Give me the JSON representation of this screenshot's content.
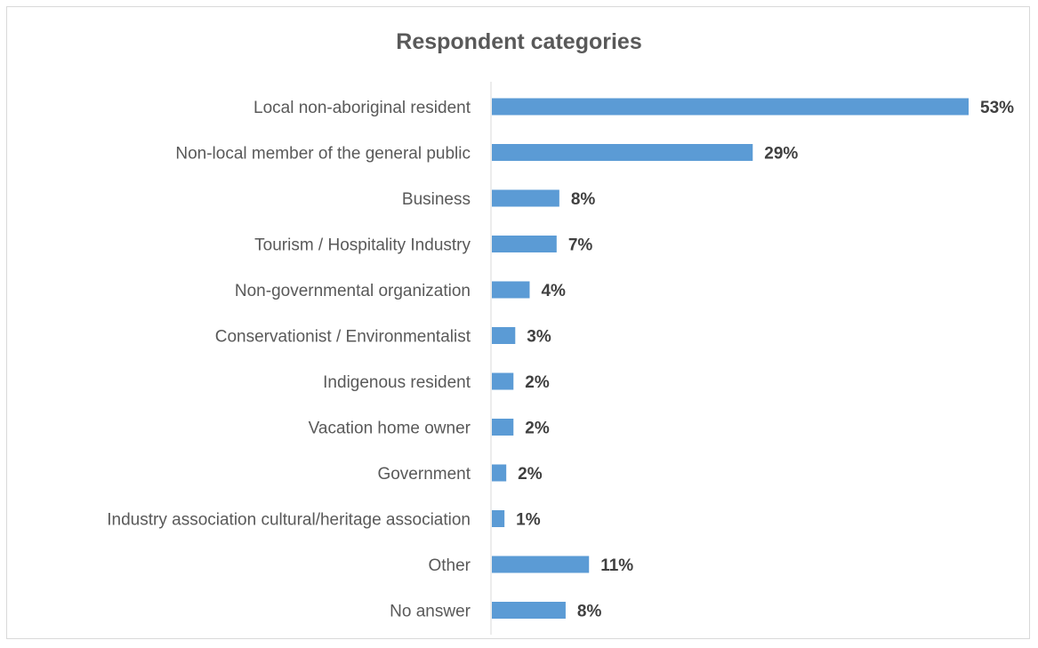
{
  "chart_data": {
    "type": "bar",
    "orientation": "horizontal",
    "title": "Respondent categories",
    "xlabel": "",
    "ylabel": "",
    "categories": [
      "Local non-aboriginal resident",
      "Non-local member of the general public",
      "Business",
      "Tourism / Hospitality Industry",
      "Non-governmental organization",
      "Conservationist / Environmentalist",
      "Indigenous resident",
      "Vacation home owner",
      "Government",
      "Industry association cultural/heritage association",
      "Other",
      "No answer"
    ],
    "values": [
      53,
      29,
      8,
      7,
      4,
      3,
      2,
      2,
      2,
      1,
      11,
      8
    ],
    "data_labels": [
      "53%",
      "29%",
      "8%",
      "7%",
      "4%",
      "3%",
      "2%",
      "2%",
      "2%",
      "1%",
      "11%",
      "8%"
    ],
    "actual_values": [
      53,
      29,
      7.5,
      7.2,
      4.2,
      2.6,
      2.4,
      2.4,
      1.6,
      1.4,
      10.8,
      8.2
    ],
    "unit": "%",
    "xlim": [
      0,
      53
    ],
    "grid": false,
    "legend": "none",
    "colors": {
      "bar": "#5b9bd5",
      "axis": "#d9d9d9",
      "category_text": "#595959",
      "value_text": "#404040"
    }
  }
}
